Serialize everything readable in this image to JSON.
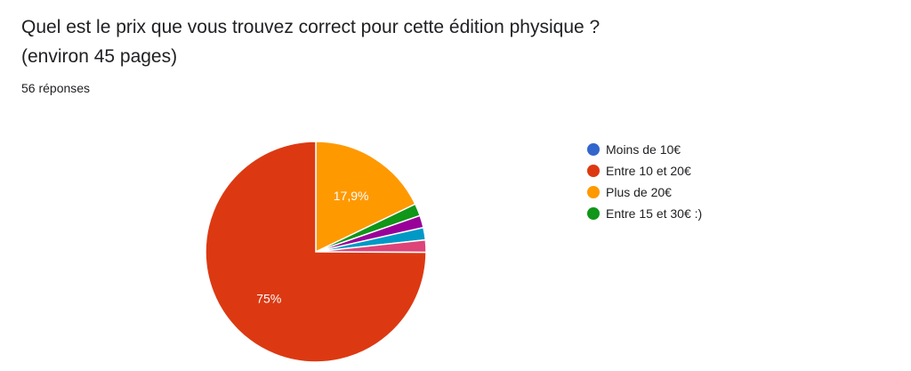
{
  "question": {
    "line1": "Quel est le prix que vous trouvez correct pour cette édition physique ?",
    "line2": "(environ 45 pages)"
  },
  "responses": "56 réponses",
  "chart_data": {
    "type": "pie",
    "total_responses": 56,
    "legend": [
      {
        "name": "Moins de 10€",
        "color": "#3366cc"
      },
      {
        "name": "Entre 10 et 20€",
        "color": "#dc3912"
      },
      {
        "name": "Plus de 20€",
        "color": "#ff9900"
      },
      {
        "name": "Entre 15 et 30€ :)",
        "color": "#109618"
      }
    ],
    "slices": [
      {
        "name": "Plus de 20€",
        "value": 17.9,
        "label": "17,9%",
        "color": "#ff9900"
      },
      {
        "name": "Entre 15 et 30€ :)",
        "value": 1.8,
        "color": "#109618"
      },
      {
        "value": 1.8,
        "color": "#990099"
      },
      {
        "value": 1.8,
        "color": "#0099c6"
      },
      {
        "value": 1.8,
        "color": "#dd4477"
      },
      {
        "name": "Entre 10 et 20€",
        "value": 75,
        "label": "75%",
        "color": "#dc3912"
      }
    ],
    "legend_placement": "right"
  }
}
